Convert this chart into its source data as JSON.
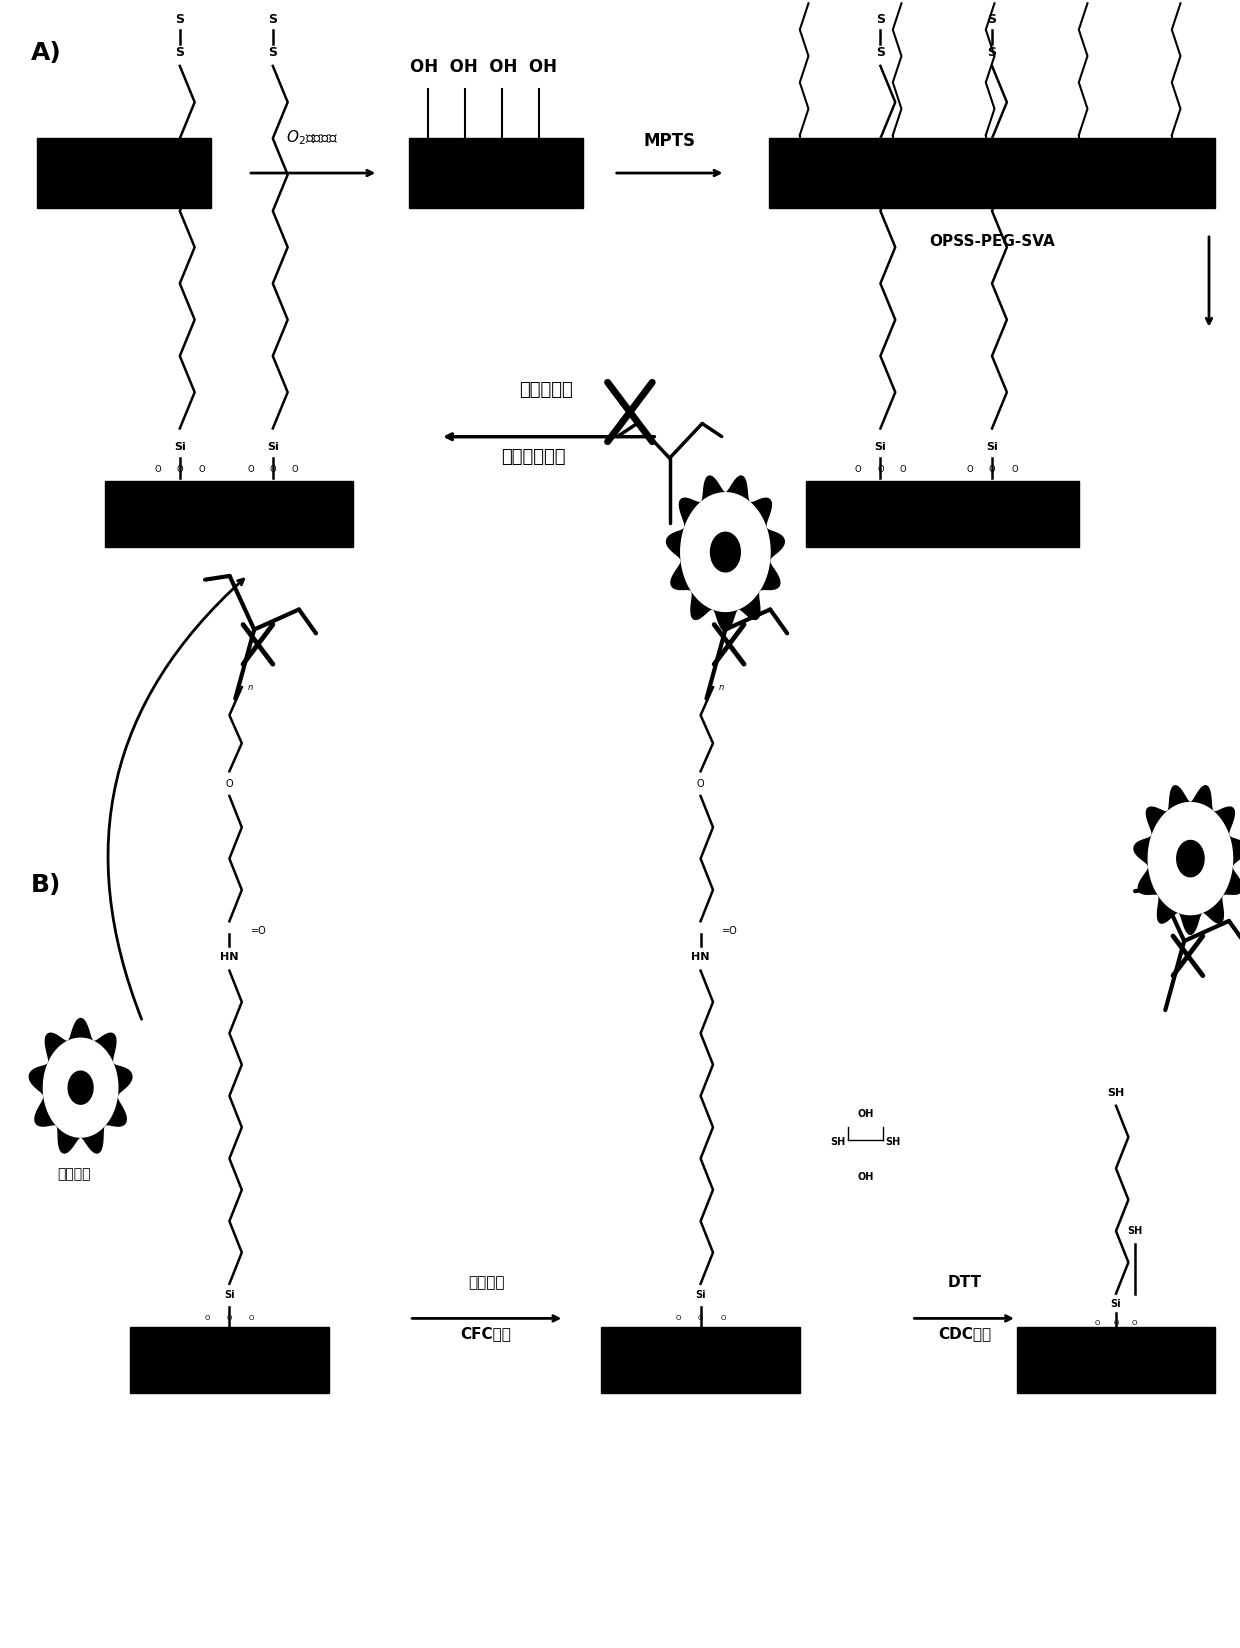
{
  "background_color": "#ffffff",
  "panel_A_label": "A)",
  "panel_B_label": "B)",
  "step1_label": "O₂等离子体",
  "step2_label": "MPTS",
  "step3_label": "OPSS-PEG-SVA",
  "step4_label_line1": "链霉亲和素",
  "step4_label_line2": "生物素化抚体",
  "step_B1_label_line1": "免疫识别",
  "step_B1_label_line2": "CFC捕获",
  "step_B2_label_line1": "DTT",
  "step_B2_label_line2": "CDC释放",
  "fetal_cell_label": "胎児细胞"
}
